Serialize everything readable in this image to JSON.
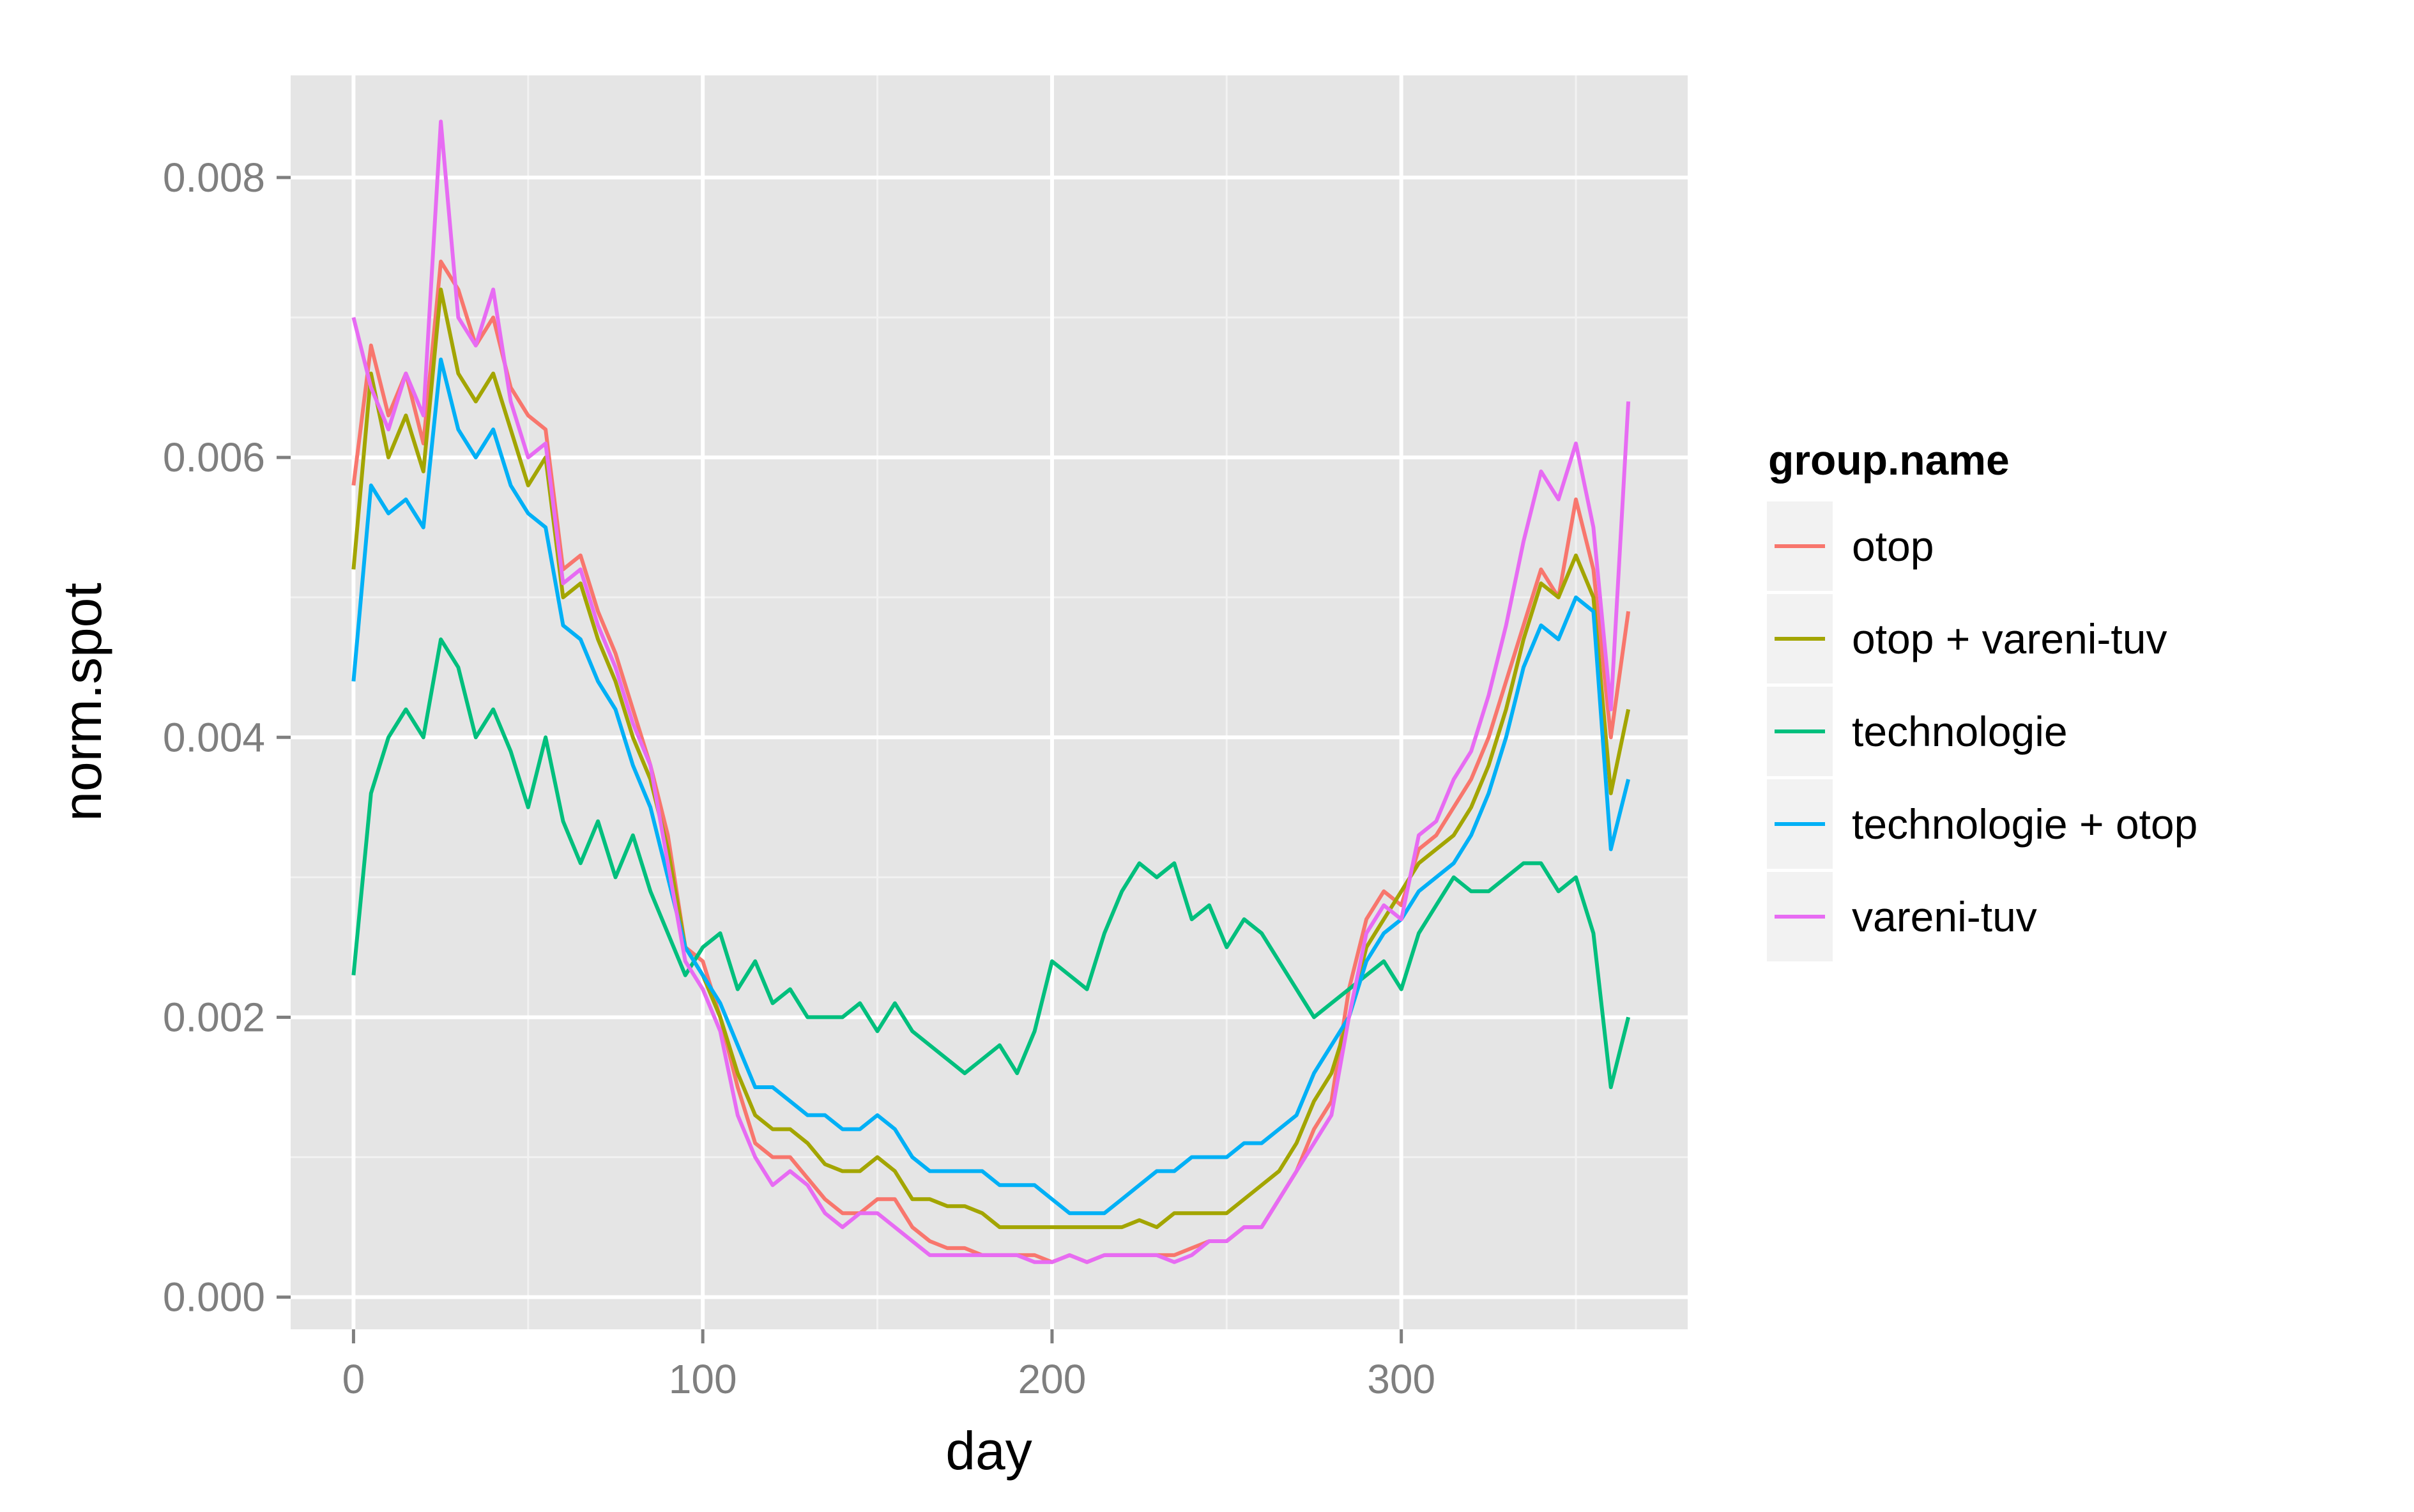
{
  "chart_data": {
    "type": "line",
    "xlabel": "day",
    "ylabel": "norm.spot",
    "xlim": [
      -18,
      382
    ],
    "ylim": [
      -0.00023,
      0.00873
    ],
    "x_ticks": [
      {
        "value": 0,
        "label": "0"
      },
      {
        "value": 100,
        "label": "100"
      },
      {
        "value": 200,
        "label": "200"
      },
      {
        "value": 300,
        "label": "300"
      }
    ],
    "y_ticks": [
      {
        "value": 0,
        "label": "0.000"
      },
      {
        "value": 0.002,
        "label": "0.002"
      },
      {
        "value": 0.004,
        "label": "0.004"
      },
      {
        "value": 0.006,
        "label": "0.006"
      },
      {
        "value": 0.008,
        "label": "0.008"
      }
    ],
    "grid": true,
    "background": "#e5e5e5",
    "legend": {
      "title": "group.name",
      "placement": "right"
    },
    "series": [
      {
        "name": "otop",
        "color": "#f8766d",
        "x": [
          0,
          5,
          10,
          15,
          20,
          25,
          30,
          35,
          40,
          45,
          50,
          55,
          60,
          65,
          70,
          75,
          80,
          85,
          90,
          95,
          100,
          105,
          110,
          115,
          120,
          125,
          130,
          135,
          140,
          145,
          150,
          155,
          160,
          165,
          170,
          175,
          180,
          185,
          190,
          195,
          200,
          205,
          210,
          215,
          220,
          225,
          230,
          235,
          240,
          245,
          250,
          255,
          260,
          265,
          270,
          275,
          280,
          285,
          290,
          295,
          300,
          305,
          310,
          315,
          320,
          325,
          330,
          335,
          340,
          345,
          350,
          355,
          360,
          365
        ],
        "y": [
          0.0058,
          0.0068,
          0.0063,
          0.0066,
          0.0061,
          0.0074,
          0.0072,
          0.0068,
          0.007,
          0.0065,
          0.0063,
          0.0062,
          0.0052,
          0.0053,
          0.0049,
          0.0046,
          0.0042,
          0.0038,
          0.0033,
          0.0025,
          0.0024,
          0.002,
          0.0015,
          0.0011,
          0.001,
          0.001,
          0.00085,
          0.0007,
          0.0006,
          0.0006,
          0.0007,
          0.0007,
          0.0005,
          0.0004,
          0.00035,
          0.00035,
          0.0003,
          0.0003,
          0.0003,
          0.0003,
          0.00025,
          0.0003,
          0.00025,
          0.0003,
          0.0003,
          0.0003,
          0.0003,
          0.0003,
          0.00035,
          0.0004,
          0.0004,
          0.0005,
          0.0005,
          0.0007,
          0.0009,
          0.0012,
          0.0014,
          0.0022,
          0.0027,
          0.0029,
          0.0028,
          0.0032,
          0.0033,
          0.0035,
          0.0037,
          0.004,
          0.0044,
          0.0048,
          0.0052,
          0.005,
          0.0057,
          0.0052,
          0.004,
          0.0049
        ]
      },
      {
        "name": "otop + vareni-tuv",
        "color": "#a3a500",
        "x": [
          0,
          5,
          10,
          15,
          20,
          25,
          30,
          35,
          40,
          45,
          50,
          55,
          60,
          65,
          70,
          75,
          80,
          85,
          90,
          95,
          100,
          105,
          110,
          115,
          120,
          125,
          130,
          135,
          140,
          145,
          150,
          155,
          160,
          165,
          170,
          175,
          180,
          185,
          190,
          195,
          200,
          205,
          210,
          215,
          220,
          225,
          230,
          235,
          240,
          245,
          250,
          255,
          260,
          265,
          270,
          275,
          280,
          285,
          290,
          295,
          300,
          305,
          310,
          315,
          320,
          325,
          330,
          335,
          340,
          345,
          350,
          355,
          360,
          365
        ],
        "y": [
          0.0052,
          0.0066,
          0.006,
          0.0063,
          0.0059,
          0.0072,
          0.0066,
          0.0064,
          0.0066,
          0.0062,
          0.0058,
          0.006,
          0.005,
          0.0051,
          0.0047,
          0.0044,
          0.004,
          0.0037,
          0.0032,
          0.0025,
          0.0023,
          0.002,
          0.0016,
          0.0013,
          0.0012,
          0.0012,
          0.0011,
          0.00095,
          0.0009,
          0.0009,
          0.001,
          0.0009,
          0.0007,
          0.0007,
          0.00065,
          0.00065,
          0.0006,
          0.0005,
          0.0005,
          0.0005,
          0.0005,
          0.0005,
          0.0005,
          0.0005,
          0.0005,
          0.00055,
          0.0005,
          0.0006,
          0.0006,
          0.0006,
          0.0006,
          0.0007,
          0.0008,
          0.0009,
          0.0011,
          0.0014,
          0.0016,
          0.002,
          0.0025,
          0.0027,
          0.0029,
          0.0031,
          0.0032,
          0.0033,
          0.0035,
          0.0038,
          0.0042,
          0.0047,
          0.0051,
          0.005,
          0.0053,
          0.005,
          0.0036,
          0.0042
        ]
      },
      {
        "name": "technologie",
        "color": "#00bf7d",
        "x": [
          0,
          5,
          10,
          15,
          20,
          25,
          30,
          35,
          40,
          45,
          50,
          55,
          60,
          65,
          70,
          75,
          80,
          85,
          90,
          95,
          100,
          105,
          110,
          115,
          120,
          125,
          130,
          135,
          140,
          145,
          150,
          155,
          160,
          165,
          170,
          175,
          180,
          185,
          190,
          195,
          200,
          205,
          210,
          215,
          220,
          225,
          230,
          235,
          240,
          245,
          250,
          255,
          260,
          265,
          270,
          275,
          280,
          285,
          290,
          295,
          300,
          305,
          310,
          315,
          320,
          325,
          330,
          335,
          340,
          345,
          350,
          355,
          360,
          365
        ],
        "y": [
          0.0023,
          0.0036,
          0.004,
          0.0042,
          0.004,
          0.0047,
          0.0045,
          0.004,
          0.0042,
          0.0039,
          0.0035,
          0.004,
          0.0034,
          0.0031,
          0.0034,
          0.003,
          0.0033,
          0.0029,
          0.0026,
          0.0023,
          0.0025,
          0.0026,
          0.0022,
          0.0024,
          0.0021,
          0.0022,
          0.002,
          0.002,
          0.002,
          0.0021,
          0.0019,
          0.0021,
          0.0019,
          0.0018,
          0.0017,
          0.0016,
          0.0017,
          0.0018,
          0.0016,
          0.0019,
          0.0024,
          0.0023,
          0.0022,
          0.0026,
          0.0029,
          0.0031,
          0.003,
          0.0031,
          0.0027,
          0.0028,
          0.0025,
          0.0027,
          0.0026,
          0.0024,
          0.0022,
          0.002,
          0.0021,
          0.0022,
          0.0023,
          0.0024,
          0.0022,
          0.0026,
          0.0028,
          0.003,
          0.0029,
          0.0029,
          0.003,
          0.0031,
          0.0031,
          0.0029,
          0.003,
          0.0026,
          0.0015,
          0.002
        ]
      },
      {
        "name": "technologie + otop",
        "color": "#00b0f6",
        "x": [
          0,
          5,
          10,
          15,
          20,
          25,
          30,
          35,
          40,
          45,
          50,
          55,
          60,
          65,
          70,
          75,
          80,
          85,
          90,
          95,
          100,
          105,
          110,
          115,
          120,
          125,
          130,
          135,
          140,
          145,
          150,
          155,
          160,
          165,
          170,
          175,
          180,
          185,
          190,
          195,
          200,
          205,
          210,
          215,
          220,
          225,
          230,
          235,
          240,
          245,
          250,
          255,
          260,
          265,
          270,
          275,
          280,
          285,
          290,
          295,
          300,
          305,
          310,
          315,
          320,
          325,
          330,
          335,
          340,
          345,
          350,
          355,
          360,
          365
        ],
        "y": [
          0.0044,
          0.0058,
          0.0056,
          0.0057,
          0.0055,
          0.0067,
          0.0062,
          0.006,
          0.0062,
          0.0058,
          0.0056,
          0.0055,
          0.0048,
          0.0047,
          0.0044,
          0.0042,
          0.0038,
          0.0035,
          0.003,
          0.0025,
          0.0023,
          0.0021,
          0.0018,
          0.0015,
          0.0015,
          0.0014,
          0.0013,
          0.0013,
          0.0012,
          0.0012,
          0.0013,
          0.0012,
          0.001,
          0.0009,
          0.0009,
          0.0009,
          0.0009,
          0.0008,
          0.0008,
          0.0008,
          0.0007,
          0.0006,
          0.0006,
          0.0006,
          0.0007,
          0.0008,
          0.0009,
          0.0009,
          0.001,
          0.001,
          0.001,
          0.0011,
          0.0011,
          0.0012,
          0.0013,
          0.0016,
          0.0018,
          0.002,
          0.0024,
          0.0026,
          0.0027,
          0.0029,
          0.003,
          0.0031,
          0.0033,
          0.0036,
          0.004,
          0.0045,
          0.0048,
          0.0047,
          0.005,
          0.0049,
          0.0032,
          0.0037
        ]
      },
      {
        "name": "vareni-tuv",
        "color": "#e76bf3",
        "x": [
          0,
          5,
          10,
          15,
          20,
          25,
          30,
          35,
          40,
          45,
          50,
          55,
          60,
          65,
          70,
          75,
          80,
          85,
          90,
          95,
          100,
          105,
          110,
          115,
          120,
          125,
          130,
          135,
          140,
          145,
          150,
          155,
          160,
          165,
          170,
          175,
          180,
          185,
          190,
          195,
          200,
          205,
          210,
          215,
          220,
          225,
          230,
          235,
          240,
          245,
          250,
          255,
          260,
          265,
          270,
          275,
          280,
          285,
          290,
          295,
          300,
          305,
          310,
          315,
          320,
          325,
          330,
          335,
          340,
          345,
          350,
          355,
          360,
          365
        ],
        "y": [
          0.007,
          0.0065,
          0.0062,
          0.0066,
          0.0063,
          0.0084,
          0.007,
          0.0068,
          0.0072,
          0.0064,
          0.006,
          0.0061,
          0.0051,
          0.0052,
          0.0048,
          0.0045,
          0.0041,
          0.0038,
          0.0031,
          0.0024,
          0.0022,
          0.0019,
          0.0013,
          0.001,
          0.0008,
          0.0009,
          0.0008,
          0.0006,
          0.0005,
          0.0006,
          0.0006,
          0.0005,
          0.0004,
          0.0003,
          0.0003,
          0.0003,
          0.0003,
          0.0003,
          0.0003,
          0.00025,
          0.00025,
          0.0003,
          0.00025,
          0.0003,
          0.0003,
          0.0003,
          0.0003,
          0.00025,
          0.0003,
          0.0004,
          0.0004,
          0.0005,
          0.0005,
          0.0007,
          0.0009,
          0.0011,
          0.0013,
          0.002,
          0.0026,
          0.0028,
          0.0027,
          0.0033,
          0.0034,
          0.0037,
          0.0039,
          0.0043,
          0.0048,
          0.0054,
          0.0059,
          0.0057,
          0.0061,
          0.0055,
          0.0042,
          0.0064
        ]
      }
    ]
  }
}
